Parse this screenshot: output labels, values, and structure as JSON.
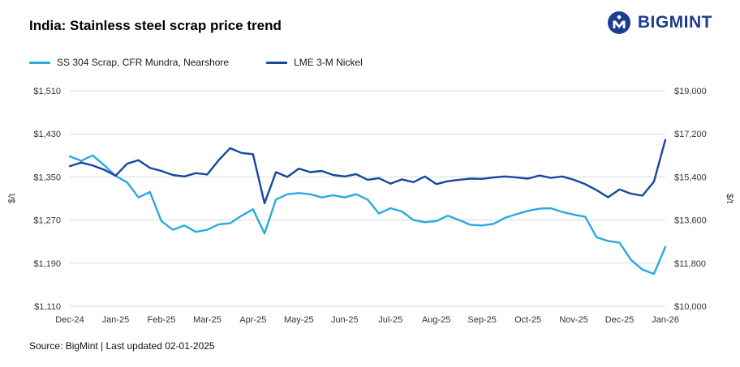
{
  "header": {
    "title": "India: Stainless steel scrap price trend",
    "brand": "BIGMINT"
  },
  "footer": {
    "source": "Source: BigMint | Last updated 02-01-2025"
  },
  "chart_data": {
    "type": "line",
    "title": "India: Stainless steel scrap price trend",
    "grid": "horizontal",
    "legend_position": "top-left",
    "x_tick_labels": [
      "Dec-24",
      "Jan-25",
      "Feb-25",
      "Mar-25",
      "Apr-25",
      "May-25",
      "Jun-25",
      "Jul-25",
      "Aug-25",
      "Sep-25",
      "Oct-25",
      "Nov-25",
      "Dec-25",
      "Jan-26"
    ],
    "left_axis": {
      "label": "$/t",
      "min": 1110,
      "max": 1510,
      "ticks": [
        1110,
        1190,
        1270,
        1350,
        1430,
        1510
      ]
    },
    "right_axis": {
      "label": "$/t",
      "min": 10000,
      "max": 19000,
      "ticks": [
        10000,
        11800,
        13600,
        15400,
        17200,
        19000
      ]
    },
    "series": [
      {
        "name": "SS 304 Scrap, CFR Mundra, Nearshore",
        "axis": "left",
        "color": "#29a9e0",
        "values": [
          1388,
          1380,
          1390,
          1372,
          1352,
          1340,
          1312,
          1322,
          1268,
          1252,
          1260,
          1248,
          1252,
          1262,
          1264,
          1278,
          1290,
          1245,
          1308,
          1318,
          1320,
          1318,
          1312,
          1316,
          1312,
          1318,
          1308,
          1282,
          1292,
          1286,
          1270,
          1266,
          1268,
          1278,
          1270,
          1261,
          1260,
          1263,
          1274,
          1281,
          1287,
          1291,
          1292,
          1285,
          1280,
          1276,
          1238,
          1231,
          1228,
          1196,
          1178,
          1170,
          1220
        ]
      },
      {
        "name": "LME 3-M Nickel",
        "axis": "right",
        "color": "#17479e",
        "values": [
          15850,
          16000,
          15880,
          15700,
          15450,
          15950,
          16100,
          15780,
          15650,
          15480,
          15420,
          15560,
          15500,
          16100,
          16600,
          16400,
          16350,
          14300,
          15600,
          15400,
          15750,
          15600,
          15650,
          15480,
          15420,
          15520,
          15280,
          15350,
          15120,
          15300,
          15180,
          15420,
          15100,
          15220,
          15280,
          15330,
          15320,
          15380,
          15420,
          15380,
          15330,
          15460,
          15360,
          15420,
          15280,
          15100,
          14850,
          14550,
          14880,
          14700,
          14620,
          15200,
          16950
        ]
      }
    ]
  }
}
